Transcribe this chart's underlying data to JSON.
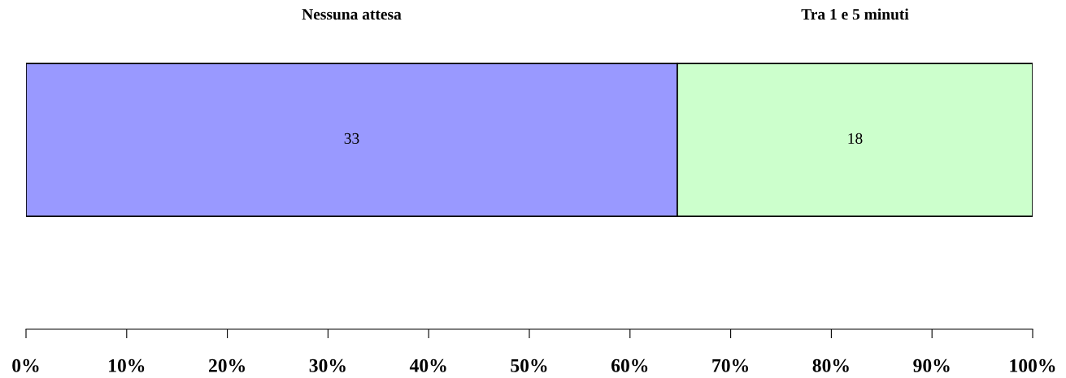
{
  "chart_data": {
    "type": "bar",
    "orientation": "horizontal",
    "stacked": true,
    "categories": [
      null
    ],
    "series": [
      {
        "name": "Nessuna attesa",
        "color": "#9999ff",
        "values": [
          64.7
        ]
      },
      {
        "name": "Tra 1 e 5 minuti",
        "color": "#ccffcc",
        "values": [
          35.3
        ]
      }
    ],
    "annotations": [
      "33",
      "18"
    ],
    "xlim": [
      0,
      100
    ],
    "xticks": [
      {
        "value": 0,
        "label": "0%"
      },
      {
        "value": 10,
        "label": "10%"
      },
      {
        "value": 20,
        "label": "20%"
      },
      {
        "value": 30,
        "label": "30%"
      },
      {
        "value": 40,
        "label": "40%"
      },
      {
        "value": 50,
        "label": "50%"
      },
      {
        "value": 60,
        "label": "60%"
      },
      {
        "value": 70,
        "label": "70%"
      },
      {
        "value": 80,
        "label": "80%"
      },
      {
        "value": 90,
        "label": "90%"
      },
      {
        "value": 100,
        "label": "100%"
      }
    ],
    "tick_labels": "x",
    "grid": false
  }
}
